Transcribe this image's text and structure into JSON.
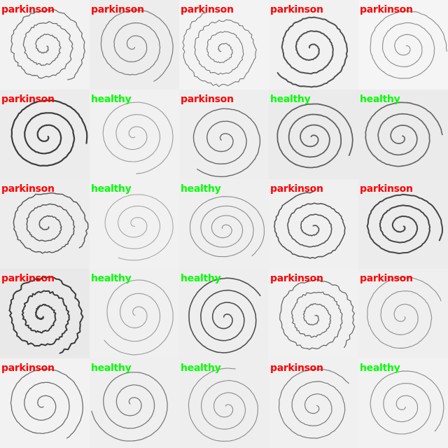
{
  "colors": {
    "parkinson": "#ff0000",
    "healthy": "#00ff00"
  },
  "tiles": [
    {
      "label": "parkinson",
      "bg": "#f2f2f2",
      "ink": "#6e6e6e",
      "width": 1.3,
      "tremor": 3.2,
      "turns": 3.2
    },
    {
      "label": "parkinson",
      "bg": "#ededed",
      "ink": "#7a7a7a",
      "width": 1.2,
      "tremor": 0.6,
      "turns": 3.0
    },
    {
      "label": "parkinson",
      "bg": "#f3f3f3",
      "ink": "#777777",
      "width": 1.1,
      "tremor": 3.0,
      "turns": 3.3
    },
    {
      "label": "parkinson",
      "bg": "#f1f1f1",
      "ink": "#505050",
      "width": 2.0,
      "tremor": 1.2,
      "turns": 2.8
    },
    {
      "label": "parkinson",
      "bg": "#f5f5f5",
      "ink": "#8a8a8a",
      "width": 1.1,
      "tremor": 0.8,
      "turns": 3.2
    },
    {
      "label": "parkinson",
      "bg": "#ececec",
      "ink": "#3c3c3c",
      "width": 2.2,
      "tremor": 0.6,
      "turns": 3.0
    },
    {
      "label": "healthy",
      "bg": "#f1f1f1",
      "ink": "#9a9a9a",
      "width": 1.1,
      "tremor": 0.3,
      "turns": 3.0
    },
    {
      "label": "parkinson",
      "bg": "#eeeeee",
      "ink": "#6a6a6a",
      "width": 1.4,
      "tremor": 0.5,
      "turns": 2.9
    },
    {
      "label": "healthy",
      "bg": "#ebebeb",
      "ink": "#606060",
      "width": 1.8,
      "tremor": 0.4,
      "turns": 3.4
    },
    {
      "label": "healthy",
      "bg": "#ebebeb",
      "ink": "#666666",
      "width": 1.7,
      "tremor": 0.5,
      "turns": 3.1
    },
    {
      "label": "parkinson",
      "bg": "#ededed",
      "ink": "#5a5a5a",
      "width": 1.5,
      "tremor": 2.2,
      "turns": 3.0
    },
    {
      "label": "healthy",
      "bg": "#f1f1f1",
      "ink": "#a0a0a0",
      "width": 1.0,
      "tremor": 0.3,
      "turns": 3.0
    },
    {
      "label": "healthy",
      "bg": "#efefef",
      "ink": "#8c8c8c",
      "width": 1.1,
      "tremor": 0.3,
      "turns": 3.6
    },
    {
      "label": "parkinson",
      "bg": "#f0f0f0",
      "ink": "#555555",
      "width": 1.6,
      "tremor": 1.6,
      "turns": 3.0
    },
    {
      "label": "parkinson",
      "bg": "#ececec",
      "ink": "#454545",
      "width": 2.0,
      "tremor": 1.0,
      "turns": 3.1
    },
    {
      "label": "parkinson",
      "bg": "#e9e9e9",
      "ink": "#3a3a3a",
      "width": 2.0,
      "tremor": 3.6,
      "turns": 3.0
    },
    {
      "label": "healthy",
      "bg": "#f0f0f0",
      "ink": "#9a9a9a",
      "width": 1.1,
      "tremor": 0.3,
      "turns": 3.0
    },
    {
      "label": "healthy",
      "bg": "#eeeeee",
      "ink": "#4e4e4e",
      "width": 1.6,
      "tremor": 0.3,
      "turns": 3.3
    },
    {
      "label": "parkinson",
      "bg": "#f1f1f1",
      "ink": "#6a6a6a",
      "width": 1.3,
      "tremor": 2.8,
      "turns": 3.3
    },
    {
      "label": "parkinson",
      "bg": "#efefef",
      "ink": "#8e8e8e",
      "width": 1.1,
      "tremor": 0.6,
      "turns": 2.9
    },
    {
      "label": "parkinson",
      "bg": "#f2f2f2",
      "ink": "#6e6e6e",
      "width": 1.3,
      "tremor": 0.6,
      "turns": 2.9
    },
    {
      "label": "healthy",
      "bg": "#efefef",
      "ink": "#7a7a7a",
      "width": 1.3,
      "tremor": 0.3,
      "turns": 3.0
    },
    {
      "label": "healthy",
      "bg": "#eeeeee",
      "ink": "#8a8a8a",
      "width": 1.1,
      "tremor": 0.4,
      "turns": 3.1
    },
    {
      "label": "parkinson",
      "bg": "#f0f0f0",
      "ink": "#7a7a7a",
      "width": 1.2,
      "tremor": 0.7,
      "turns": 3.0
    },
    {
      "label": "healthy",
      "bg": "#f2f2f2",
      "ink": "#8a8a8a",
      "width": 1.1,
      "tremor": 0.3,
      "turns": 3.0
    }
  ]
}
